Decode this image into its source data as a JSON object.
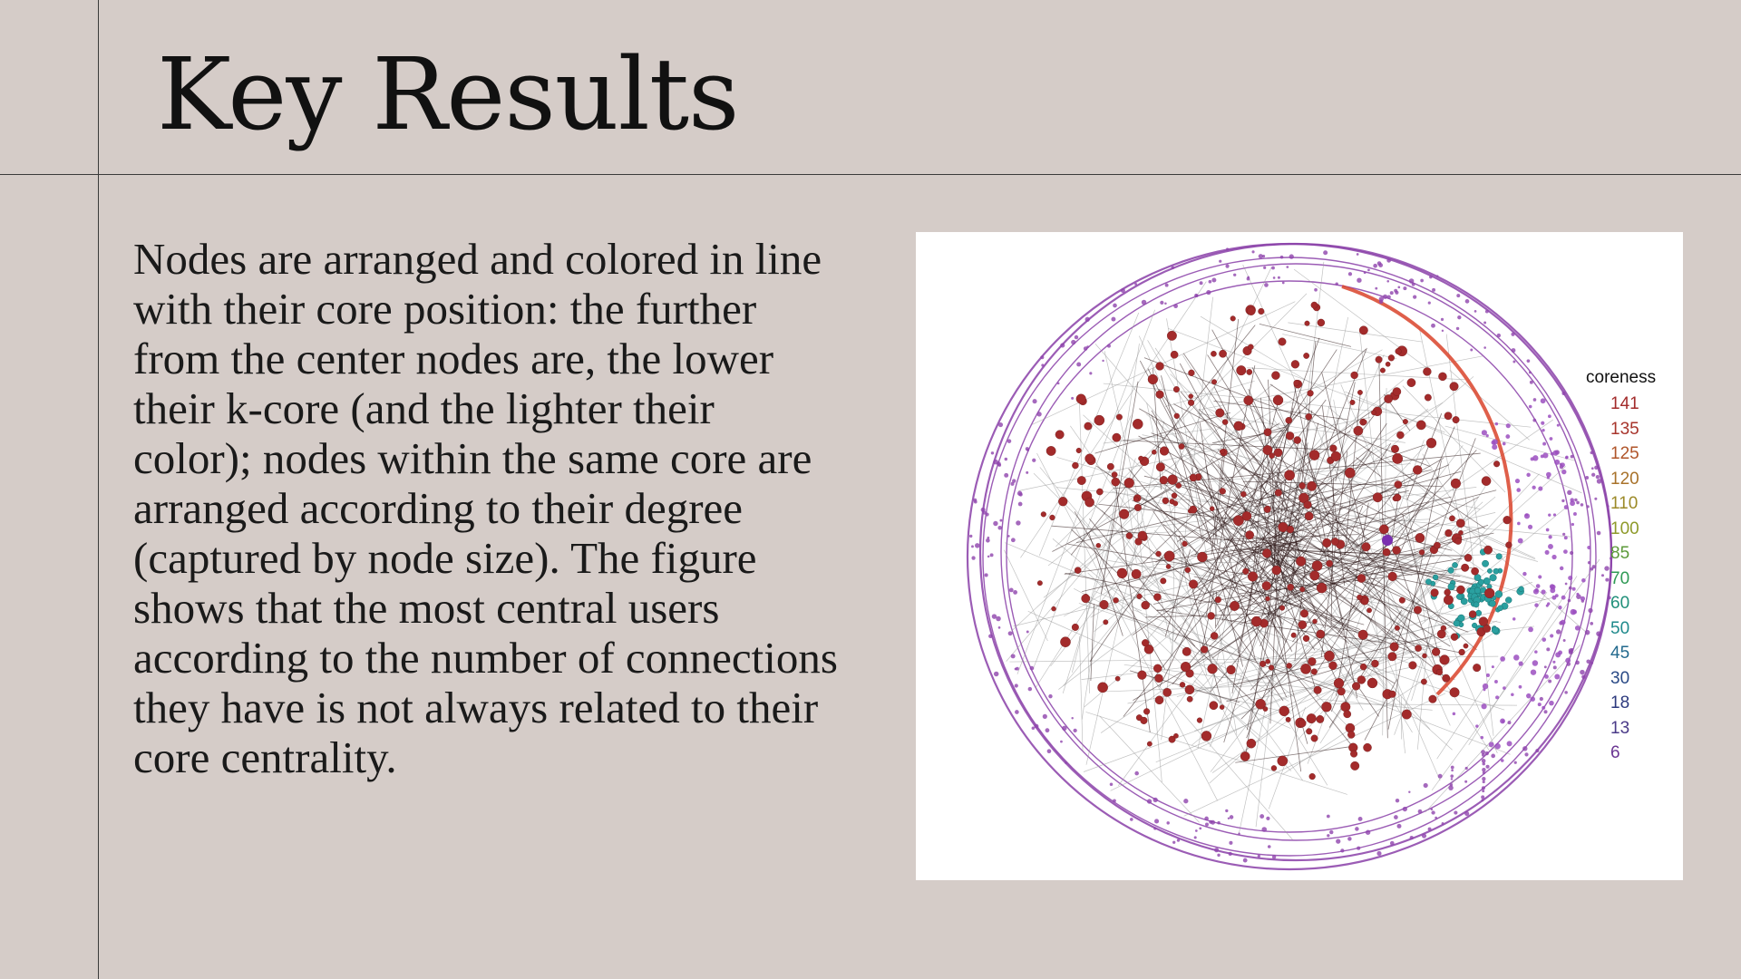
{
  "slide": {
    "title": "Key Results",
    "body": "Nodes are arranged and colored in line with their core position: the further from the center nodes are, the lower their k-core (and the lighter their color); nodes within the same core are arranged according to their degree (captured by node size). The figure shows that the most central users according to the number of connections they have is not always related to their core centrality."
  },
  "figure": {
    "legend_title": "coreness",
    "legend": [
      {
        "label": "141",
        "color": "#a32b2b"
      },
      {
        "label": "135",
        "color": "#a8352c"
      },
      {
        "label": "125",
        "color": "#b0552a"
      },
      {
        "label": "120",
        "color": "#a8722a"
      },
      {
        "label": "110",
        "color": "#9c8a28"
      },
      {
        "label": "100",
        "color": "#8e9a2a"
      },
      {
        "label": "85",
        "color": "#5c9a3a"
      },
      {
        "label": "70",
        "color": "#2f9a55"
      },
      {
        "label": "60",
        "color": "#21907a"
      },
      {
        "label": "50",
        "color": "#1f8a8c"
      },
      {
        "label": "45",
        "color": "#236a8e"
      },
      {
        "label": "30",
        "color": "#2a4a86"
      },
      {
        "label": "18",
        "color": "#2d3a7e"
      },
      {
        "label": "13",
        "color": "#4a3a88"
      },
      {
        "label": "6",
        "color": "#6a3592"
      }
    ]
  }
}
